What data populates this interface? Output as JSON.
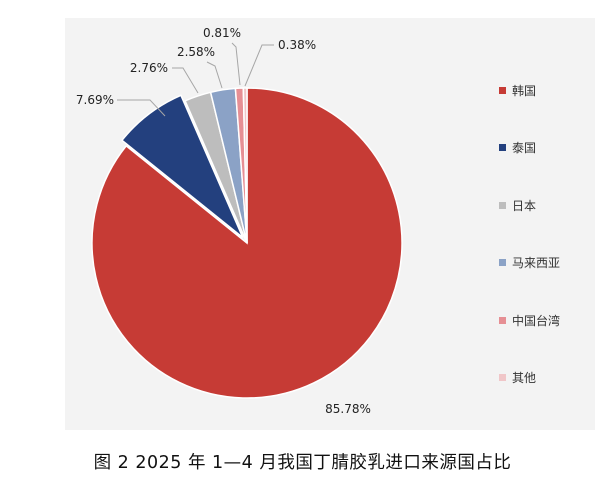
{
  "chart_data": {
    "type": "pie",
    "title": "",
    "start_angle_deg": 0,
    "direction": "clockwise",
    "legend_position": "right",
    "slices": [
      {
        "name": "韩国",
        "value": 85.78,
        "label": "85.78%",
        "color": "#c63b35"
      },
      {
        "name": "泰国",
        "value": 7.69,
        "label": "7.69%",
        "color": "#23407e"
      },
      {
        "name": "日本",
        "value": 2.76,
        "label": "2.76%",
        "color": "#bdbdbd"
      },
      {
        "name": "马来西亚",
        "value": 2.58,
        "label": "2.58%",
        "color": "#8ba2c6"
      },
      {
        "name": "中国台湾",
        "value": 0.81,
        "label": "0.81%",
        "color": "#e68f94"
      },
      {
        "name": "其他",
        "value": 0.38,
        "label": "0.38%",
        "color": "#f0c6c8"
      }
    ]
  },
  "caption": "图 2 2025 年 1—4 月我国丁腈胶乳进口来源国占比"
}
